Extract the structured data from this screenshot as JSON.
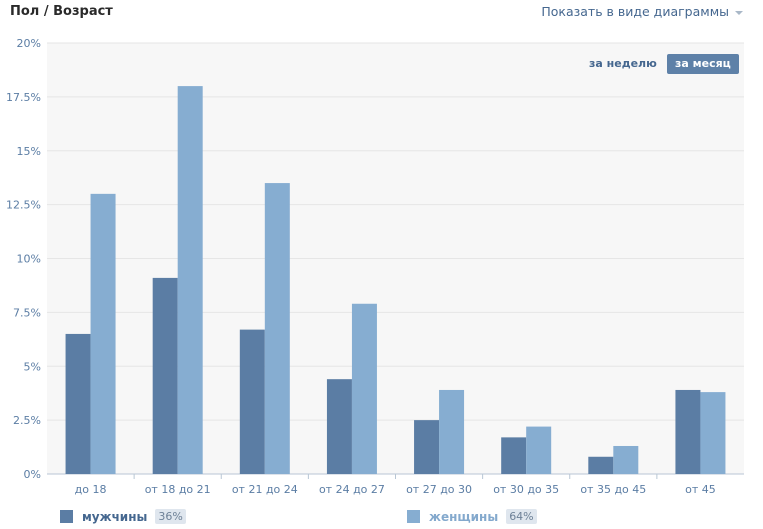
{
  "header": {
    "title": "Пол / Возраст",
    "view_switch_label": "Показать в виде диаграммы"
  },
  "period_buttons": {
    "week": "за неделю",
    "month": "за месяц"
  },
  "legend": {
    "men_label": "мужчины",
    "men_share": "36%",
    "women_label": "женщины",
    "women_share": "64%"
  },
  "colors": {
    "men": "#5b7da4",
    "women": "#86add1"
  },
  "chart_data": {
    "type": "bar",
    "categories": [
      "до 18",
      "от 18 до 21",
      "от 21 до 24",
      "от 24 до 27",
      "от 27 до 30",
      "от 30 до 35",
      "от 35 до 45",
      "от 45"
    ],
    "series": [
      {
        "name": "мужчины",
        "values": [
          6.5,
          9.1,
          6.7,
          4.4,
          2.5,
          1.7,
          0.8,
          3.9
        ]
      },
      {
        "name": "женщины",
        "values": [
          13.0,
          18.0,
          13.5,
          7.9,
          3.9,
          2.2,
          1.3,
          3.8
        ]
      }
    ],
    "y_ticks": [
      "0%",
      "2.5%",
      "5%",
      "7.5%",
      "10%",
      "12.5%",
      "15%",
      "17.5%",
      "20%"
    ],
    "ylim": [
      0,
      20
    ],
    "grid": true,
    "legend_position": "bottom"
  }
}
